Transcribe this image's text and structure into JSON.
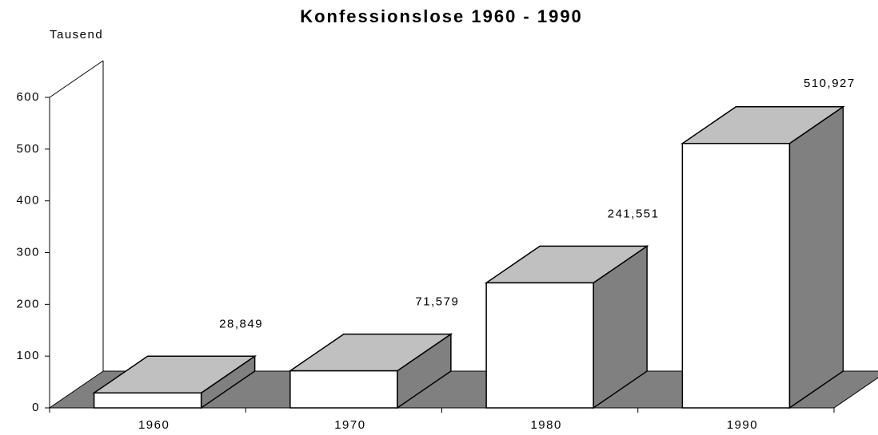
{
  "chart_data": {
    "type": "bar3d",
    "title": "Konfessionslose 1960 - 1990",
    "y_axis_label": "Tausend",
    "categories": [
      "1960",
      "1970",
      "1980",
      "1990"
    ],
    "values": [
      28.849,
      71.579,
      241.551,
      510.927
    ],
    "value_labels": [
      "28,849",
      "71,579",
      "241,551",
      "510,927"
    ],
    "ylim": [
      0,
      600
    ],
    "yticks": [
      0,
      100,
      200,
      300,
      400,
      500,
      600
    ],
    "colors": {
      "front": "#ffffff",
      "top": "#c0c0c0",
      "side": "#808080",
      "floor": "#808080"
    }
  }
}
